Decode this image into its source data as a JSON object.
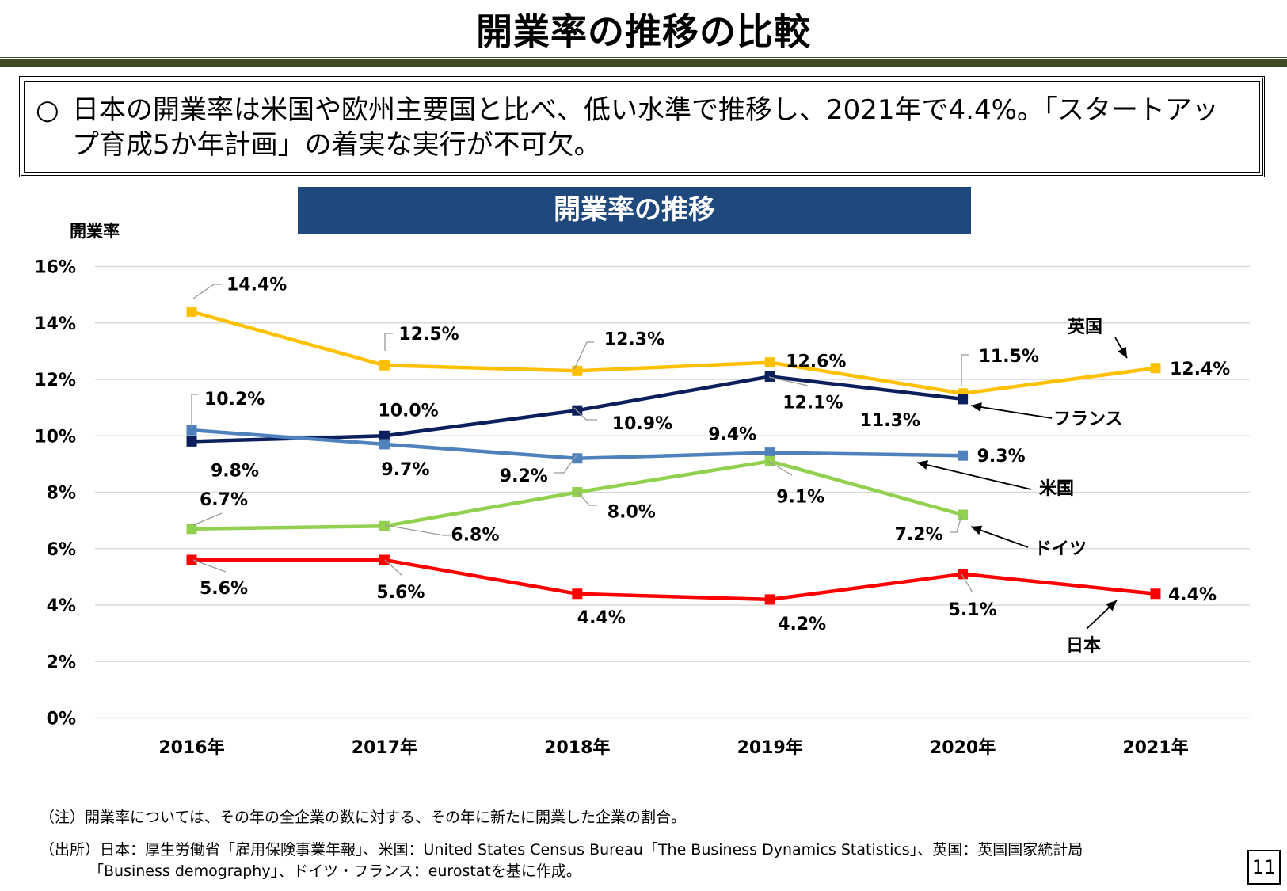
{
  "page_title": "開業率の推移の比較",
  "summary": {
    "mark": "○",
    "text": "日本の開業率は米国や欧州主要国と比べ、低い水準で推移し、2021年で4.4%。「スタートアップ育成5か年計画」の着実な実行が不可欠。"
  },
  "chart_data": {
    "type": "line",
    "title": "開業率の推移",
    "ylabel": "開業率",
    "categories": [
      "2016年",
      "2017年",
      "2018年",
      "2019年",
      "2020年",
      "2021年"
    ],
    "ylim": [
      0,
      16
    ],
    "yticks": [
      "0%",
      "2%",
      "4%",
      "6%",
      "8%",
      "10%",
      "12%",
      "14%",
      "16%"
    ],
    "grid": true,
    "series": [
      {
        "name": "英国",
        "color": "#ffc000",
        "values": [
          14.4,
          12.5,
          12.3,
          12.6,
          11.5,
          12.4
        ],
        "labels": [
          "14.4%",
          "12.5%",
          "12.3%",
          "12.6%",
          "11.5%",
          "12.4%"
        ]
      },
      {
        "name": "フランス",
        "color": "#0b1f5c",
        "values": [
          9.8,
          10.0,
          10.9,
          12.1,
          11.3,
          null
        ],
        "labels": [
          "9.8%",
          "10.0%",
          "10.9%",
          "12.1%",
          "11.3%",
          ""
        ]
      },
      {
        "name": "米国",
        "color": "#4f81bd",
        "values": [
          10.2,
          9.7,
          9.2,
          9.4,
          9.3,
          null
        ],
        "labels": [
          "10.2%",
          "9.7%",
          "9.2%",
          "9.4%",
          "9.3%",
          ""
        ]
      },
      {
        "name": "ドイツ",
        "color": "#92d050",
        "values": [
          6.7,
          6.8,
          8.0,
          9.1,
          7.2,
          null
        ],
        "labels": [
          "6.7%",
          "6.8%",
          "8.0%",
          "9.1%",
          "7.2%",
          ""
        ]
      },
      {
        "name": "日本",
        "color": "#ff0000",
        "values": [
          5.6,
          5.6,
          4.4,
          4.2,
          5.1,
          4.4
        ],
        "labels": [
          "5.6%",
          "5.6%",
          "4.4%",
          "4.2%",
          "5.1%",
          "4.4%"
        ]
      }
    ]
  },
  "footnotes": {
    "note": "（注）開業率については、その年の全企業の数に対する、その年に新たに開業した企業の割合。",
    "source_line1": "（出所）日本：厚生労働省「雇用保険事業年報」、米国：United States Census Bureau「The Business Dynamics Statistics」、英国：英国国家統計局",
    "source_line2": "「Business demography」、ドイツ・フランス：eurostatを基に作成。"
  },
  "page_number": "11"
}
